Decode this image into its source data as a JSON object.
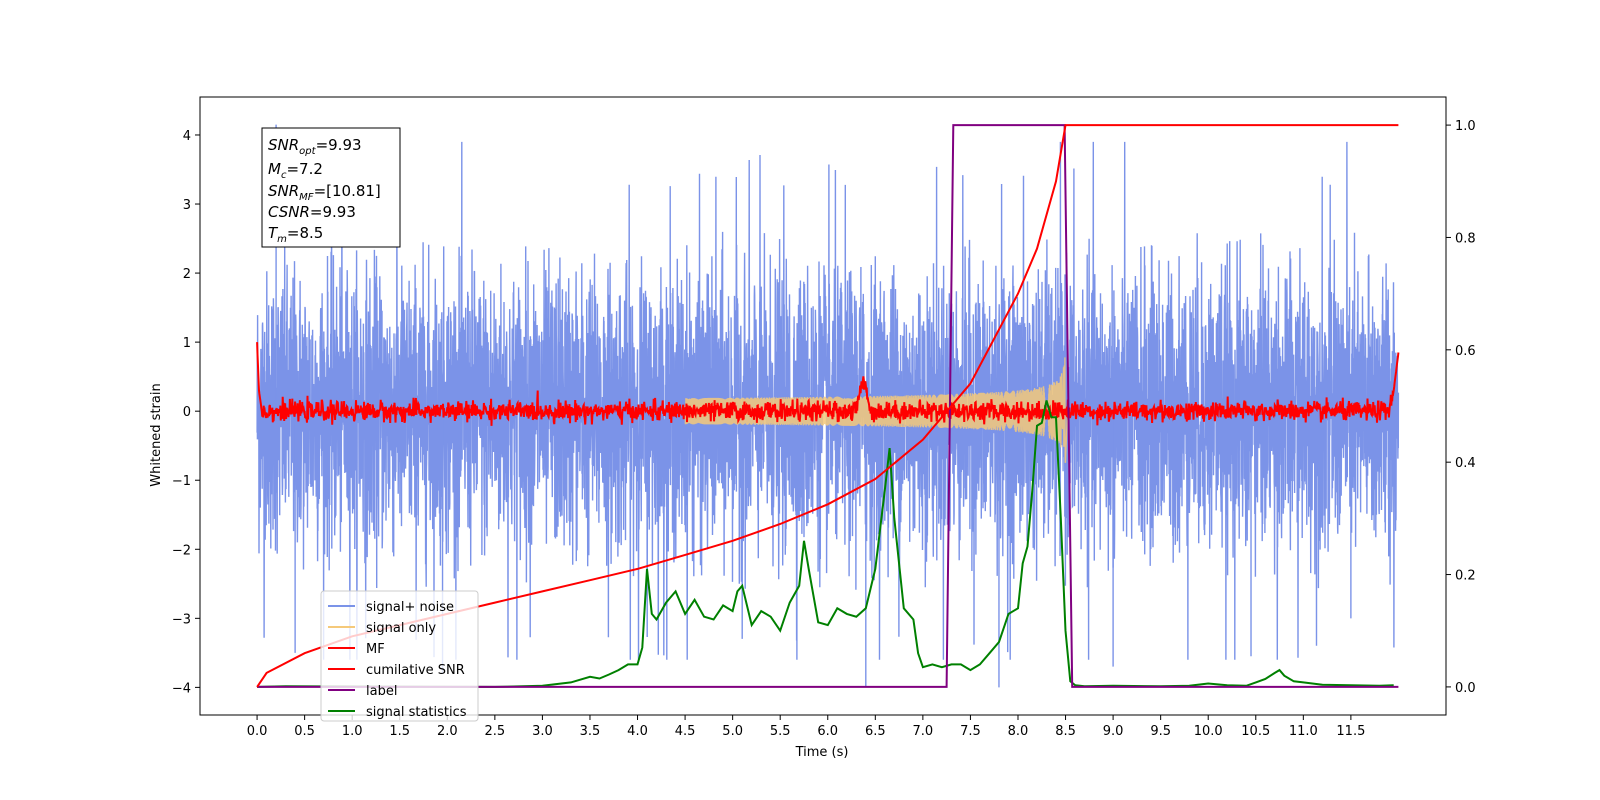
{
  "chart_data": {
    "type": "line",
    "xlabel": "Time (s)",
    "ylabel": "Whitened strain",
    "xlim": [
      -0.6,
      12.5
    ],
    "ylim_left": [
      -4.4,
      4.55
    ],
    "ylim_right": [
      -0.05,
      1.05
    ],
    "x_ticks": [
      "0.0",
      "0.5",
      "1.0",
      "1.5",
      "2.0",
      "2.5",
      "3.0",
      "3.5",
      "4.0",
      "4.5",
      "5.0",
      "5.5",
      "6.0",
      "6.5",
      "7.0",
      "7.5",
      "8.0",
      "8.5",
      "9.0",
      "9.5",
      "10.0",
      "10.5",
      "11.0",
      "11.5"
    ],
    "y_ticks_left": [
      "−4",
      "−3",
      "−2",
      "−1",
      "0",
      "1",
      "2",
      "3",
      "4"
    ],
    "y_ticks_right": [
      "0.0",
      "0.2",
      "0.4",
      "0.6",
      "0.8",
      "1.0"
    ],
    "grid": false,
    "legend_position": "lower-left",
    "info_box": {
      "snr_opt": {
        "symbol": "SNR",
        "sub": "opt",
        "value": "=9.93"
      },
      "mc": {
        "symbol": "M",
        "sub": "c",
        "value": "=7.2"
      },
      "snr_mf": {
        "symbol": "SNR",
        "sub": "MF",
        "value": "=[10.81]"
      },
      "csnr": {
        "symbol": "CSNR",
        "sub": "",
        "value": "=9.93"
      },
      "tm": {
        "symbol": "T",
        "sub": "m",
        "value": "=8.5"
      }
    },
    "series": [
      {
        "name": "signal+ noise",
        "axis": "left",
        "color": "#7b93e8",
        "description_range": [
          0.0,
          12.0
        ],
        "envelope_typical": 2.5,
        "notable_points": [
          [
            0.2,
            4.15
          ],
          [
            0.4,
            -3.5
          ],
          [
            1.95,
            -3.8
          ],
          [
            6.4,
            -4.0
          ],
          [
            7.8,
            -4.0
          ],
          [
            9.0,
            -3.7
          ],
          [
            10.45,
            -3.55
          ],
          [
            11.5,
            -3.0
          ]
        ]
      },
      {
        "name": "signal only",
        "axis": "left",
        "color": "#f5c97a",
        "start_time": 4.5,
        "merger_time": 8.5,
        "peak_amplitude": 1.0
      },
      {
        "name": "MF",
        "axis": "left",
        "color": "#ff0000",
        "x": [
          0.0,
          0.02,
          0.05,
          0.1,
          6.3,
          6.35,
          6.4,
          6.45,
          11.9,
          11.95,
          12.0
        ],
        "y": [
          1.0,
          0.3,
          0.0,
          0.0,
          0.0,
          0.38,
          0.38,
          0.0,
          0.0,
          0.3,
          0.85
        ],
        "noise_amplitude": 0.1
      },
      {
        "name": "cumilative SNR",
        "axis": "right",
        "color": "#ff0000",
        "x": [
          0.0,
          0.1,
          0.5,
          1.0,
          1.5,
          2.0,
          2.5,
          3.0,
          3.5,
          4.0,
          4.5,
          5.0,
          5.5,
          6.0,
          6.5,
          7.0,
          7.5,
          8.0,
          8.2,
          8.4,
          8.5,
          12.0
        ],
        "y": [
          0.0,
          0.025,
          0.06,
          0.09,
          0.11,
          0.13,
          0.15,
          0.17,
          0.19,
          0.21,
          0.235,
          0.26,
          0.29,
          0.325,
          0.37,
          0.44,
          0.54,
          0.7,
          0.78,
          0.9,
          1.0,
          1.0
        ]
      },
      {
        "name": "label",
        "axis": "right",
        "color": "#800080",
        "x": [
          0.0,
          7.25,
          7.32,
          8.49,
          8.57,
          12.0
        ],
        "y": [
          0.0,
          0.0,
          1.0,
          1.0,
          0.0,
          0.0
        ]
      },
      {
        "name": "signal statistics",
        "axis": "right",
        "color": "#008000",
        "x": [
          0.0,
          0.3,
          2.5,
          3.0,
          3.3,
          3.5,
          3.6,
          3.7,
          3.8,
          3.9,
          4.0,
          4.05,
          4.1,
          4.15,
          4.2,
          4.3,
          4.4,
          4.5,
          4.6,
          4.7,
          4.8,
          4.9,
          5.0,
          5.05,
          5.1,
          5.2,
          5.3,
          5.4,
          5.5,
          5.6,
          5.7,
          5.75,
          5.8,
          5.9,
          6.0,
          6.1,
          6.2,
          6.3,
          6.4,
          6.5,
          6.6,
          6.65,
          6.7,
          6.8,
          6.9,
          6.95,
          7.0,
          7.1,
          7.2,
          7.3,
          7.4,
          7.5,
          7.6,
          7.7,
          7.8,
          7.9,
          8.0,
          8.05,
          8.1,
          8.15,
          8.2,
          8.25,
          8.3,
          8.35,
          8.4,
          8.45,
          8.5,
          8.55,
          8.6,
          8.7,
          9.0,
          9.5,
          9.8,
          10.0,
          10.2,
          10.4,
          10.5,
          10.6,
          10.7,
          10.75,
          10.8,
          10.9,
          11.0,
          11.2,
          11.5,
          11.8,
          11.95
        ],
        "y": [
          0.0,
          0.001,
          0.0,
          0.002,
          0.008,
          0.018,
          0.015,
          0.022,
          0.03,
          0.04,
          0.04,
          0.07,
          0.21,
          0.13,
          0.12,
          0.15,
          0.17,
          0.13,
          0.155,
          0.125,
          0.12,
          0.145,
          0.135,
          0.17,
          0.18,
          0.11,
          0.135,
          0.125,
          0.1,
          0.15,
          0.18,
          0.26,
          0.21,
          0.115,
          0.11,
          0.14,
          0.13,
          0.125,
          0.14,
          0.21,
          0.35,
          0.425,
          0.3,
          0.14,
          0.12,
          0.06,
          0.035,
          0.04,
          0.035,
          0.04,
          0.04,
          0.03,
          0.04,
          0.06,
          0.08,
          0.13,
          0.14,
          0.22,
          0.25,
          0.35,
          0.465,
          0.47,
          0.51,
          0.48,
          0.48,
          0.3,
          0.1,
          0.01,
          0.003,
          0.001,
          0.002,
          0.001,
          0.002,
          0.006,
          0.003,
          0.002,
          0.008,
          0.014,
          0.025,
          0.03,
          0.02,
          0.01,
          0.008,
          0.004,
          0.003,
          0.002,
          0.003
        ]
      }
    ]
  }
}
